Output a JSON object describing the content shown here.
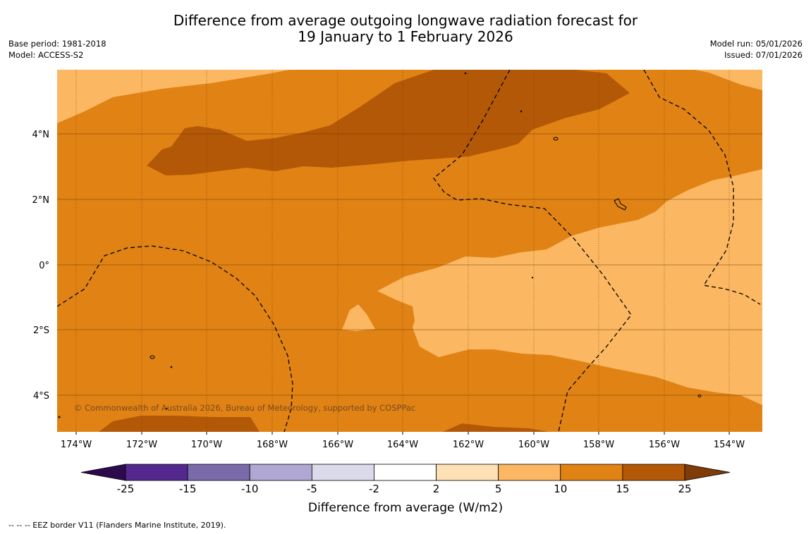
{
  "title": {
    "line1": "Difference from average outgoing longwave radiation forecast for",
    "line2": "19 January to 1 February 2026"
  },
  "meta": {
    "base_period": "Base period: 1981-2018",
    "model": "Model: ACCESS-S2",
    "model_run": "Model run: 05/01/2026",
    "issued": "Issued: 07/01/2026"
  },
  "map": {
    "lon_labels": [
      "174°W",
      "172°W",
      "170°W",
      "168°W",
      "166°W",
      "164°W",
      "162°W",
      "160°W",
      "158°W",
      "156°W",
      "154°W"
    ],
    "lat_labels": [
      "4°N",
      "2°N",
      "0°",
      "2°S",
      "4°S"
    ],
    "copyright": "© Commonwealth of Australia 2026, Bureau of Meteorology, supported by COSPPac"
  },
  "colorbar": {
    "ticks": [
      "-25",
      "-15",
      "-10",
      "-5",
      "-2",
      "2",
      "5",
      "10",
      "15",
      "25"
    ],
    "label": "Difference from average (W/m2)",
    "colors": {
      "lt_neg25": "#2d0a4e",
      "neg25_neg15": "#54278f",
      "neg15_neg10": "#7a6aaa",
      "neg10_neg5": "#b1a7d3",
      "neg5_neg2": "#dadaeb",
      "neg2_2": "#ffffff",
      "p2_5": "#fee0b6",
      "p5_10": "#fbb761",
      "p10_15": "#e08214",
      "p15_25": "#b35806",
      "gt_25": "#7f3b08"
    }
  },
  "footnote": "--  --  -- EEZ border V11 (Flanders Marine Institute, 2019)."
}
